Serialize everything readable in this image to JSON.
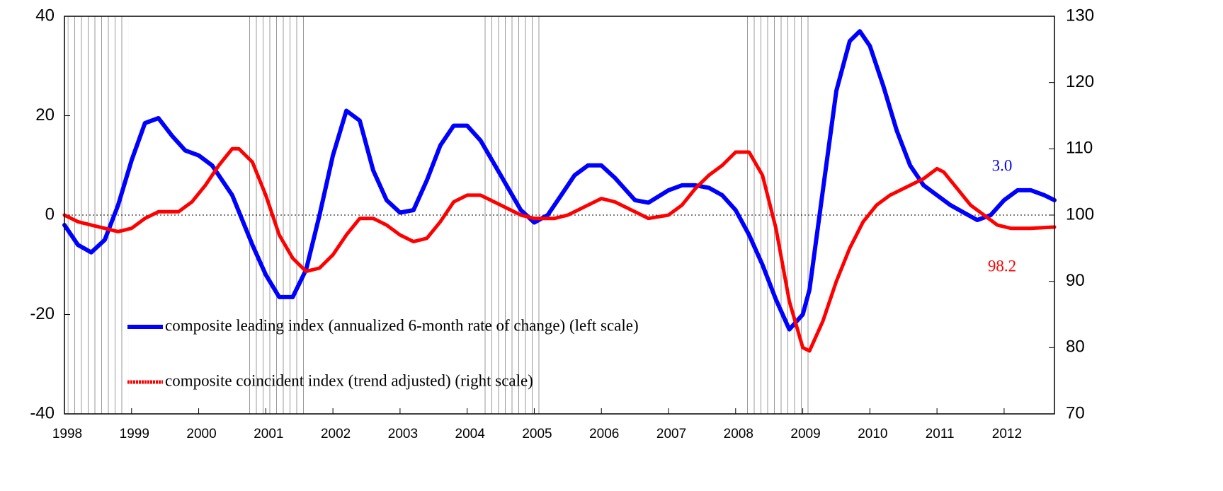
{
  "chart_data": {
    "type": "line",
    "x": null,
    "xlim": [
      1998,
      2012.75
    ],
    "xticks": [
      1998,
      1999,
      2000,
      2001,
      2002,
      2003,
      2004,
      2005,
      2006,
      2007,
      2008,
      2009,
      2010,
      2011,
      2012
    ],
    "ylim": [
      -40,
      40
    ],
    "yticks": [
      -40,
      -20,
      0,
      20,
      40
    ],
    "y2lim": [
      70,
      130
    ],
    "y2ticks": [
      70,
      80,
      90,
      100,
      110,
      120,
      130
    ],
    "legend": "lower left",
    "shaded_periods": [
      [
        1998.05,
        1998.95
      ],
      [
        2000.7,
        2001.65
      ],
      [
        2004.2,
        2005.1
      ],
      [
        2008.15,
        2009.1
      ]
    ],
    "annotations": [
      "3.0",
      "98.2"
    ],
    "series": [
      {
        "name": "composite leading index (annualized 6-month rate of change)  (left scale)",
        "color": "#0000ff",
        "axis": "y",
        "x": [
          1998.0,
          1998.2,
          1998.4,
          1998.6,
          1998.8,
          1999.0,
          1999.2,
          1999.4,
          1999.6,
          1999.8,
          2000.0,
          2000.2,
          2000.5,
          2000.8,
          2001.0,
          2001.2,
          2001.4,
          2001.6,
          2001.8,
          2002.0,
          2002.2,
          2002.4,
          2002.6,
          2002.8,
          2003.0,
          2003.2,
          2003.4,
          2003.6,
          2003.8,
          2004.0,
          2004.2,
          2004.5,
          2004.8,
          2005.0,
          2005.2,
          2005.4,
          2005.6,
          2005.8,
          2006.0,
          2006.2,
          2006.5,
          2006.7,
          2007.0,
          2007.2,
          2007.4,
          2007.6,
          2007.8,
          2008.0,
          2008.2,
          2008.4,
          2008.6,
          2008.8,
          2009.0,
          2009.1,
          2009.3,
          2009.5,
          2009.7,
          2009.85,
          2010.0,
          2010.2,
          2010.4,
          2010.6,
          2010.8,
          2011.0,
          2011.2,
          2011.4,
          2011.6,
          2011.8,
          2012.0,
          2012.2,
          2012.4,
          2012.6,
          2012.75
        ],
        "values": [
          -2,
          -6,
          -7.5,
          -5,
          2,
          11,
          18.5,
          19.5,
          16,
          13,
          12,
          10,
          4,
          -6,
          -12,
          -16.5,
          -16.5,
          -11,
          0,
          12,
          21,
          19,
          9,
          3,
          0.5,
          1,
          7,
          14,
          18,
          18,
          15,
          8,
          1,
          -1.5,
          0,
          4,
          8,
          10,
          10,
          7.5,
          3,
          2.5,
          5,
          6,
          6,
          5.5,
          4,
          1,
          -4,
          -10,
          -17,
          -23,
          -20,
          -15,
          5,
          25,
          35,
          37,
          34,
          26,
          17,
          10,
          6,
          4,
          2,
          0.5,
          -1,
          0,
          3,
          5,
          5,
          4,
          3.0
        ]
      },
      {
        "name": "composite coincident index (trend adjusted)  (right scale)",
        "color": "#ff0000",
        "axis": "y2",
        "x": [
          1998.0,
          1998.2,
          1998.4,
          1998.6,
          1998.8,
          1999.0,
          1999.2,
          1999.4,
          1999.7,
          1999.9,
          2000.1,
          2000.3,
          2000.5,
          2000.6,
          2000.8,
          2001.0,
          2001.2,
          2001.4,
          2001.6,
          2001.8,
          2002.0,
          2002.2,
          2002.4,
          2002.6,
          2002.8,
          2003.0,
          2003.2,
          2003.4,
          2003.6,
          2003.8,
          2004.0,
          2004.2,
          2004.5,
          2004.8,
          2005.0,
          2005.3,
          2005.5,
          2005.8,
          2006.0,
          2006.2,
          2006.5,
          2006.7,
          2007.0,
          2007.2,
          2007.4,
          2007.6,
          2007.8,
          2008.0,
          2008.2,
          2008.4,
          2008.6,
          2008.8,
          2009.0,
          2009.1,
          2009.3,
          2009.5,
          2009.7,
          2009.9,
          2010.1,
          2010.3,
          2010.6,
          2010.8,
          2011.0,
          2011.1,
          2011.3,
          2011.5,
          2011.7,
          2011.9,
          2012.1,
          2012.4,
          2012.75
        ],
        "values": [
          100,
          99,
          98.5,
          98,
          97.5,
          98,
          99.5,
          100.5,
          100.5,
          102,
          104.5,
          107.5,
          110,
          110,
          108,
          103,
          97,
          93.5,
          91.5,
          92,
          94,
          97,
          99.5,
          99.5,
          98.5,
          97,
          96,
          96.5,
          99,
          102,
          103,
          103,
          101.5,
          100,
          99.5,
          99.5,
          100,
          101.5,
          102.5,
          102,
          100.5,
          99.5,
          100,
          101.5,
          104,
          106,
          107.5,
          109.5,
          109.5,
          106,
          98,
          87,
          80,
          79.5,
          84,
          90,
          95,
          99,
          101.5,
          103,
          104.5,
          105.5,
          107,
          106.5,
          104,
          101.5,
          100,
          98.5,
          98,
          98,
          98.2
        ]
      }
    ]
  }
}
